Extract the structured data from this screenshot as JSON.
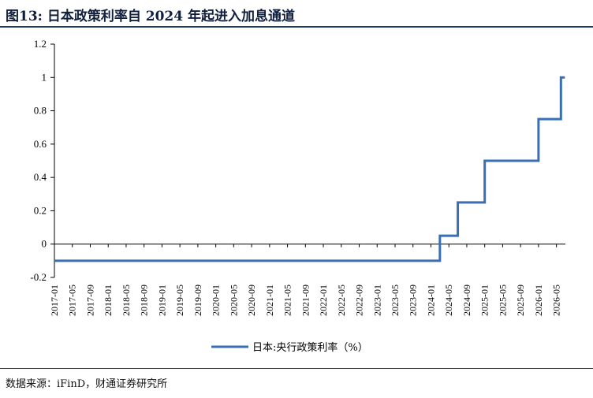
{
  "figure": {
    "title": "图13: 日本政策利率自 2024 年起进入加息通道",
    "source": "数据来源：iFinD，财通证券研究所"
  },
  "chart_data": {
    "type": "line",
    "title": "",
    "xlabel": "",
    "ylabel": "",
    "ylim": [
      -0.2,
      1.2
    ],
    "yticks": [
      "1.2",
      "1",
      "0.8",
      "0.6",
      "0.4",
      "0.2",
      "0",
      "-0.2"
    ],
    "yticks_values": [
      1.2,
      1.0,
      0.8,
      0.6,
      0.4,
      0.2,
      0.0,
      -0.2
    ],
    "xticks": [
      "2017-01",
      "2017-05",
      "2017-09",
      "2018-01",
      "2018-05",
      "2018-09",
      "2019-01",
      "2019-05",
      "2019-09",
      "2020-01",
      "2020-05",
      "2020-09",
      "2021-01",
      "2021-05",
      "2021-09",
      "2022-01",
      "2022-05",
      "2022-09",
      "2023-01",
      "2023-05",
      "2023-09",
      "2024-01",
      "2024-05",
      "2024-09",
      "2025-01",
      "2025-05",
      "2025-09",
      "2026-01",
      "2026-05"
    ],
    "legend_position": "bottom",
    "grid": false,
    "series": [
      {
        "name": "日本:央行政策利率（%）",
        "color": "#3a6fb5",
        "step": true,
        "x": [
          "2017-01",
          "2024-03",
          "2024-07",
          "2024-12",
          "2025-01",
          "2026-01",
          "2026-06",
          "2026-06"
        ],
        "y": [
          -0.1,
          0.05,
          0.25,
          0.25,
          0.5,
          0.75,
          1.0,
          1.0
        ]
      }
    ]
  }
}
